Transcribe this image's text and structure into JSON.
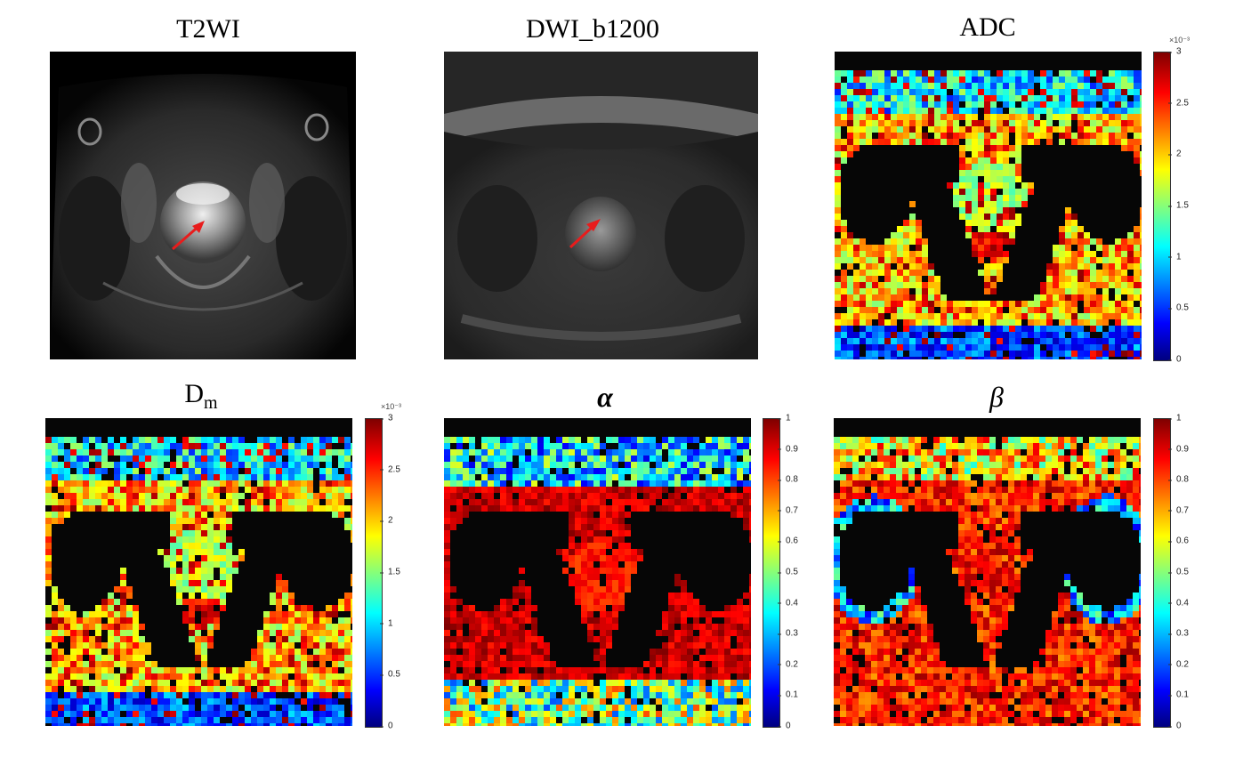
{
  "panels": [
    {
      "id": "t2wi",
      "title": "T2WI",
      "type": "grayscale",
      "arrow": true
    },
    {
      "id": "dwi",
      "title": "DWI_b1200",
      "type": "grayscale",
      "arrow": true
    },
    {
      "id": "adc",
      "title": "ADC",
      "type": "colormap",
      "colormap": "jet"
    },
    {
      "id": "dm",
      "title_main": "D",
      "title_sub": "m",
      "type": "colormap",
      "colormap": "jet"
    },
    {
      "id": "alpha",
      "title": "α",
      "type": "colormap",
      "colormap": "jet"
    },
    {
      "id": "beta",
      "title": "β",
      "type": "colormap",
      "colormap": "jet"
    }
  ],
  "colorbars": {
    "diffusion": {
      "exponent": "×10⁻³",
      "ticks": [
        "3",
        "2.5",
        "2",
        "1.5",
        "1",
        "0.5",
        "0"
      ],
      "range": [
        0,
        3
      ]
    },
    "unit": {
      "ticks": [
        "1",
        "0.9",
        "0.8",
        "0.7",
        "0.6",
        "0.5",
        "0.4",
        "0.3",
        "0.2",
        "0.1",
        "0"
      ],
      "range": [
        0,
        1
      ]
    }
  },
  "colors": {
    "arrow": "#e81c1c",
    "background": "#ffffff"
  }
}
